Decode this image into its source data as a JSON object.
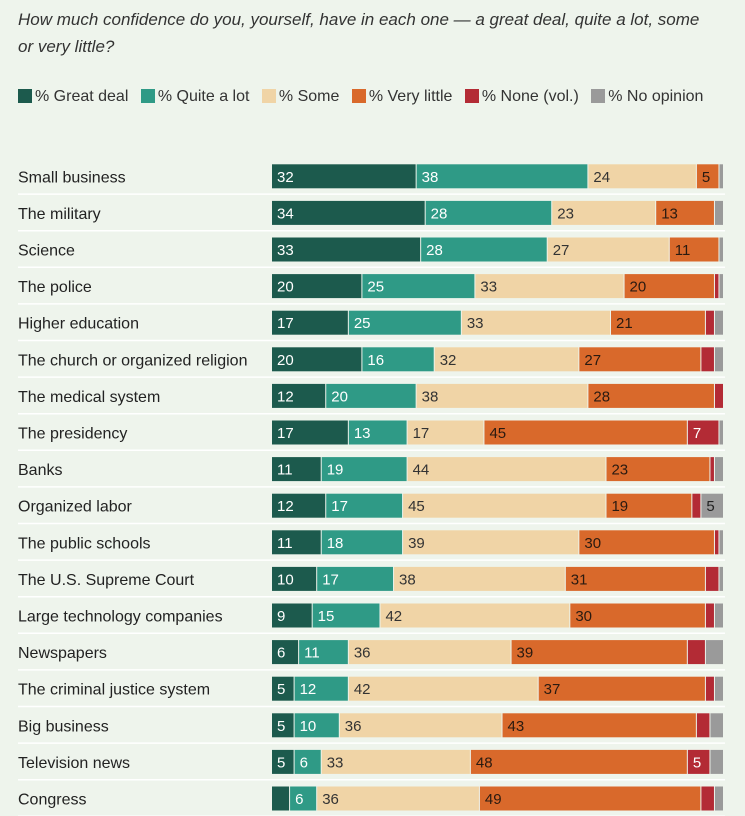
{
  "title": "How much confidence do you, yourself, have in each one — a great deal, quite a lot, some or very little?",
  "colors": {
    "great_deal": "#1c5a4d",
    "quite_a_lot": "#2f9a86",
    "some": "#f0d4a6",
    "very_little": "#d9692b",
    "none": "#b32b35",
    "no_opinion": "#9a9a9a"
  },
  "chart_data": {
    "type": "bar",
    "orientation": "horizontal",
    "stacked": true,
    "title": "How much confidence do you, yourself, have in each one — a great deal, quite a lot, some or very little?",
    "xlim": [
      0,
      100
    ],
    "legend_position": "top",
    "categories": [
      "Small business",
      "The military",
      "Science",
      "The police",
      "Higher education",
      "The church or organized religion",
      "The medical system",
      "The presidency",
      "Banks",
      "Organized labor",
      "The public schools",
      "The U.S. Supreme Court",
      "Large technology companies",
      "Newspapers",
      "The criminal justice system",
      "Big business",
      "Television news",
      "Congress"
    ],
    "series": [
      {
        "name": "% Great deal",
        "key": "great_deal",
        "values": [
          32,
          34,
          33,
          20,
          17,
          20,
          12,
          17,
          11,
          12,
          11,
          10,
          9,
          6,
          5,
          5,
          5,
          4
        ],
        "labels": [
          "32",
          "34",
          "33",
          "20",
          "17",
          "20",
          "12",
          "17",
          "11",
          "12",
          "11",
          "10",
          "9",
          "6",
          "5",
          "5",
          "5",
          ""
        ]
      },
      {
        "name": "% Quite a lot",
        "key": "quite_a_lot",
        "values": [
          38,
          28,
          28,
          25,
          25,
          16,
          20,
          13,
          19,
          17,
          18,
          17,
          15,
          11,
          12,
          10,
          6,
          6
        ],
        "labels": [
          "38",
          "28",
          "28",
          "25",
          "25",
          "16",
          "20",
          "13",
          "19",
          "17",
          "18",
          "17",
          "15",
          "11",
          "12",
          "10",
          "6",
          "6"
        ]
      },
      {
        "name": "% Some",
        "key": "some",
        "values": [
          24,
          23,
          27,
          33,
          33,
          32,
          38,
          17,
          44,
          45,
          39,
          38,
          42,
          36,
          42,
          36,
          33,
          36
        ],
        "labels": [
          "24",
          "23",
          "27",
          "33",
          "33",
          "32",
          "38",
          "17",
          "44",
          "45",
          "39",
          "38",
          "42",
          "36",
          "42",
          "36",
          "33",
          "36"
        ]
      },
      {
        "name": "% Very little",
        "key": "very_little",
        "values": [
          5,
          13,
          11,
          20,
          21,
          27,
          28,
          45,
          23,
          19,
          30,
          31,
          30,
          39,
          37,
          43,
          48,
          49
        ],
        "labels": [
          "5",
          "13",
          "11",
          "20",
          "21",
          "27",
          "28",
          "45",
          "23",
          "19",
          "30",
          "31",
          "30",
          "39",
          "37",
          "43",
          "48",
          "49"
        ]
      },
      {
        "name": "% None (vol.)",
        "key": "none",
        "values": [
          0,
          0,
          0,
          1,
          2,
          3,
          2,
          7,
          1,
          2,
          1,
          3,
          2,
          4,
          2,
          3,
          5,
          3
        ],
        "labels": [
          "",
          "",
          "",
          "",
          "",
          "",
          "",
          "7",
          "",
          "",
          "",
          "",
          "",
          "",
          "",
          "",
          "5",
          ""
        ]
      },
      {
        "name": "% No opinion",
        "key": "no_opinion",
        "values": [
          1,
          2,
          1,
          1,
          2,
          2,
          0,
          1,
          2,
          5,
          1,
          1,
          2,
          4,
          2,
          3,
          3,
          2
        ],
        "labels": [
          "",
          "",
          "",
          "",
          "",
          "",
          "",
          "",
          "",
          "5",
          "",
          "",
          "",
          "",
          "",
          "",
          "",
          ""
        ]
      }
    ]
  }
}
